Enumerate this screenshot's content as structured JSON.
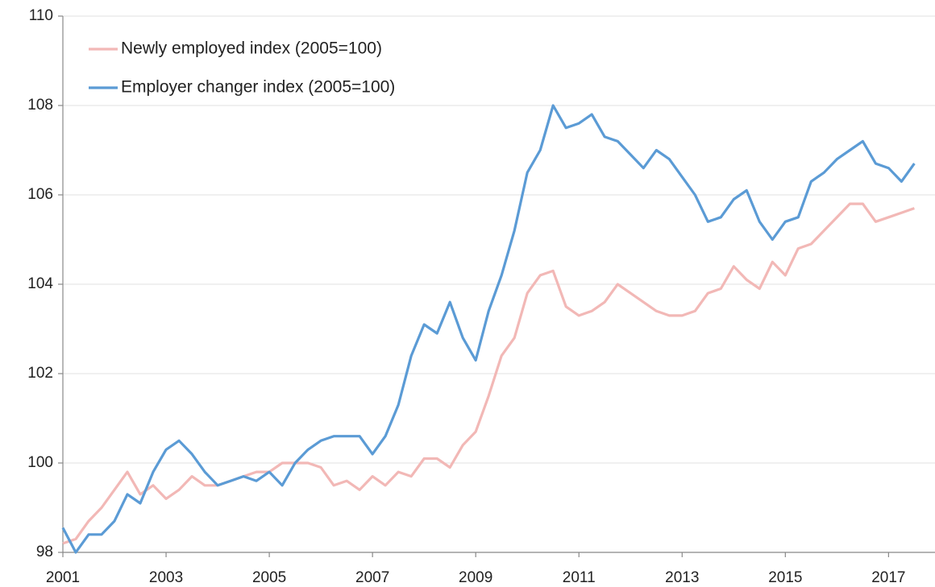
{
  "chart_data": {
    "type": "line",
    "x": [
      2001,
      2001.25,
      2001.5,
      2001.75,
      2002,
      2002.25,
      2002.5,
      2002.75,
      2003,
      2003.25,
      2003.5,
      2003.75,
      2004,
      2004.25,
      2004.5,
      2004.75,
      2005,
      2005.25,
      2005.5,
      2005.75,
      2006,
      2006.25,
      2006.5,
      2006.75,
      2007,
      2007.25,
      2007.5,
      2007.75,
      2008,
      2008.25,
      2008.5,
      2008.75,
      2009,
      2009.25,
      2009.5,
      2009.75,
      2010,
      2010.25,
      2010.5,
      2010.75,
      2011,
      2011.25,
      2011.5,
      2011.75,
      2012,
      2012.25,
      2012.5,
      2012.75,
      2013,
      2013.25,
      2013.5,
      2013.75,
      2014,
      2014.25,
      2014.5,
      2014.75,
      2015,
      2015.25,
      2015.5,
      2015.75,
      2016,
      2016.25,
      2016.5,
      2016.75,
      2017,
      2017.25,
      2017.5
    ],
    "series": [
      {
        "name": "Newly employed index (2005=100)",
        "color": "#f2b8b6",
        "values": [
          98.2,
          98.3,
          98.7,
          99.0,
          99.4,
          99.8,
          99.3,
          99.5,
          99.2,
          99.4,
          99.7,
          99.5,
          99.5,
          99.6,
          99.7,
          99.8,
          99.8,
          100.0,
          100.0,
          100.0,
          99.9,
          99.5,
          99.6,
          99.4,
          99.7,
          99.5,
          99.8,
          99.7,
          100.1,
          100.1,
          99.9,
          100.4,
          100.7,
          101.5,
          102.4,
          102.8,
          103.8,
          104.2,
          104.3,
          103.5,
          103.3,
          103.4,
          103.6,
          104.0,
          103.8,
          103.6,
          103.4,
          103.3,
          103.3,
          103.4,
          103.8,
          103.9,
          104.4,
          104.1,
          103.9,
          104.5,
          104.2,
          104.8,
          104.9,
          105.2,
          105.5,
          105.8,
          105.8,
          105.4,
          105.5,
          105.6,
          105.7
        ]
      },
      {
        "name": "Employer changer index (2005=100)",
        "color": "#5b9bd5",
        "values": [
          98.55,
          98.0,
          98.4,
          98.4,
          98.7,
          99.3,
          99.1,
          99.8,
          100.3,
          100.5,
          100.2,
          99.8,
          99.5,
          99.6,
          99.7,
          99.6,
          99.8,
          99.5,
          100.0,
          100.3,
          100.5,
          100.6,
          100.6,
          100.6,
          100.2,
          100.6,
          101.3,
          102.4,
          103.1,
          102.9,
          103.6,
          102.8,
          102.3,
          103.4,
          104.2,
          105.2,
          106.5,
          107.0,
          108.0,
          107.5,
          107.6,
          107.8,
          107.3,
          107.2,
          106.9,
          106.6,
          107.0,
          106.8,
          106.4,
          106.0,
          105.4,
          105.5,
          105.9,
          106.1,
          105.4,
          105.0,
          105.4,
          105.5,
          106.3,
          106.5,
          106.8,
          107.0,
          107.2,
          106.7,
          106.6,
          106.3,
          106.7
        ]
      }
    ],
    "xlim": [
      2001,
      2017.9
    ],
    "xticks": [
      2001,
      2003,
      2005,
      2007,
      2009,
      2011,
      2013,
      2015,
      2017
    ],
    "ylim": [
      98,
      110
    ],
    "yticks": [
      98,
      100,
      102,
      104,
      106,
      108,
      110
    ],
    "grid": true,
    "legend": "upper-left"
  }
}
